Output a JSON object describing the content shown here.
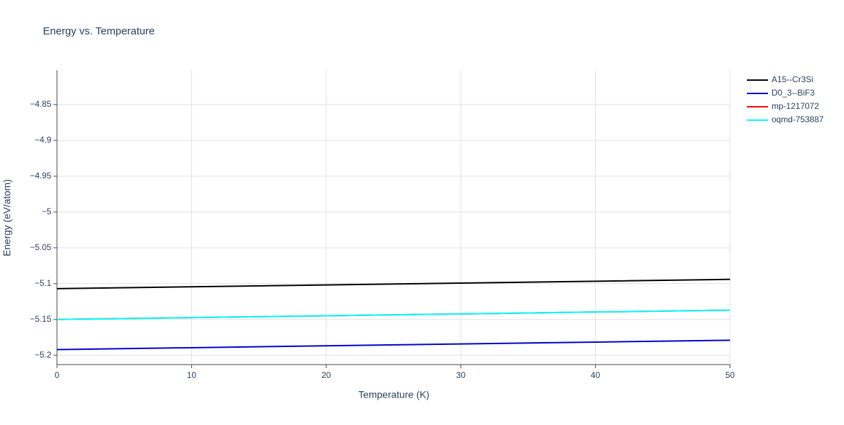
{
  "chart_data": {
    "type": "line",
    "title": "Energy vs. Temperature",
    "x_label": "Temperature (K)",
    "y_label": "Energy (eV/atom)",
    "x": [
      0,
      10,
      20,
      30,
      40,
      50
    ],
    "series": [
      {
        "name": "A15--Cr3Si",
        "color": "#000000",
        "values": [
          -5.107,
          -5.1044,
          -5.1018,
          -5.0992,
          -5.0966,
          -5.094
        ]
      },
      {
        "name": "D0_3--BiF3",
        "color": "#0000cd",
        "values": [
          -5.192,
          -5.1894,
          -5.1868,
          -5.1842,
          -5.1816,
          -5.179
        ]
      },
      {
        "name": "mp-1217072",
        "color": "#ff0000",
        "values": [
          -5.15,
          -5.1474,
          -5.1448,
          -5.1422,
          -5.1396,
          -5.137
        ]
      },
      {
        "name": "oqmd-753887",
        "color": "#00ffff",
        "values": [
          -5.15,
          -5.1474,
          -5.1448,
          -5.1422,
          -5.1396,
          -5.137
        ]
      }
    ],
    "xlim": [
      0,
      50
    ],
    "xticks": [
      0,
      10,
      20,
      30,
      40,
      50
    ],
    "ylim": [
      -5.213,
      -4.802
    ],
    "yticks": [
      {
        "value": -5.2,
        "label": "−5.2"
      },
      {
        "value": -5.15,
        "label": "−5.15"
      },
      {
        "value": -5.1,
        "label": "−5.1"
      },
      {
        "value": -5.05,
        "label": "−5.05"
      },
      {
        "value": -5,
        "label": "−5"
      },
      {
        "value": -4.95,
        "label": "−4.95"
      },
      {
        "value": -4.9,
        "label": "−4.9"
      },
      {
        "value": -4.85,
        "label": "−4.85"
      }
    ],
    "grid": true,
    "legend": "right"
  }
}
